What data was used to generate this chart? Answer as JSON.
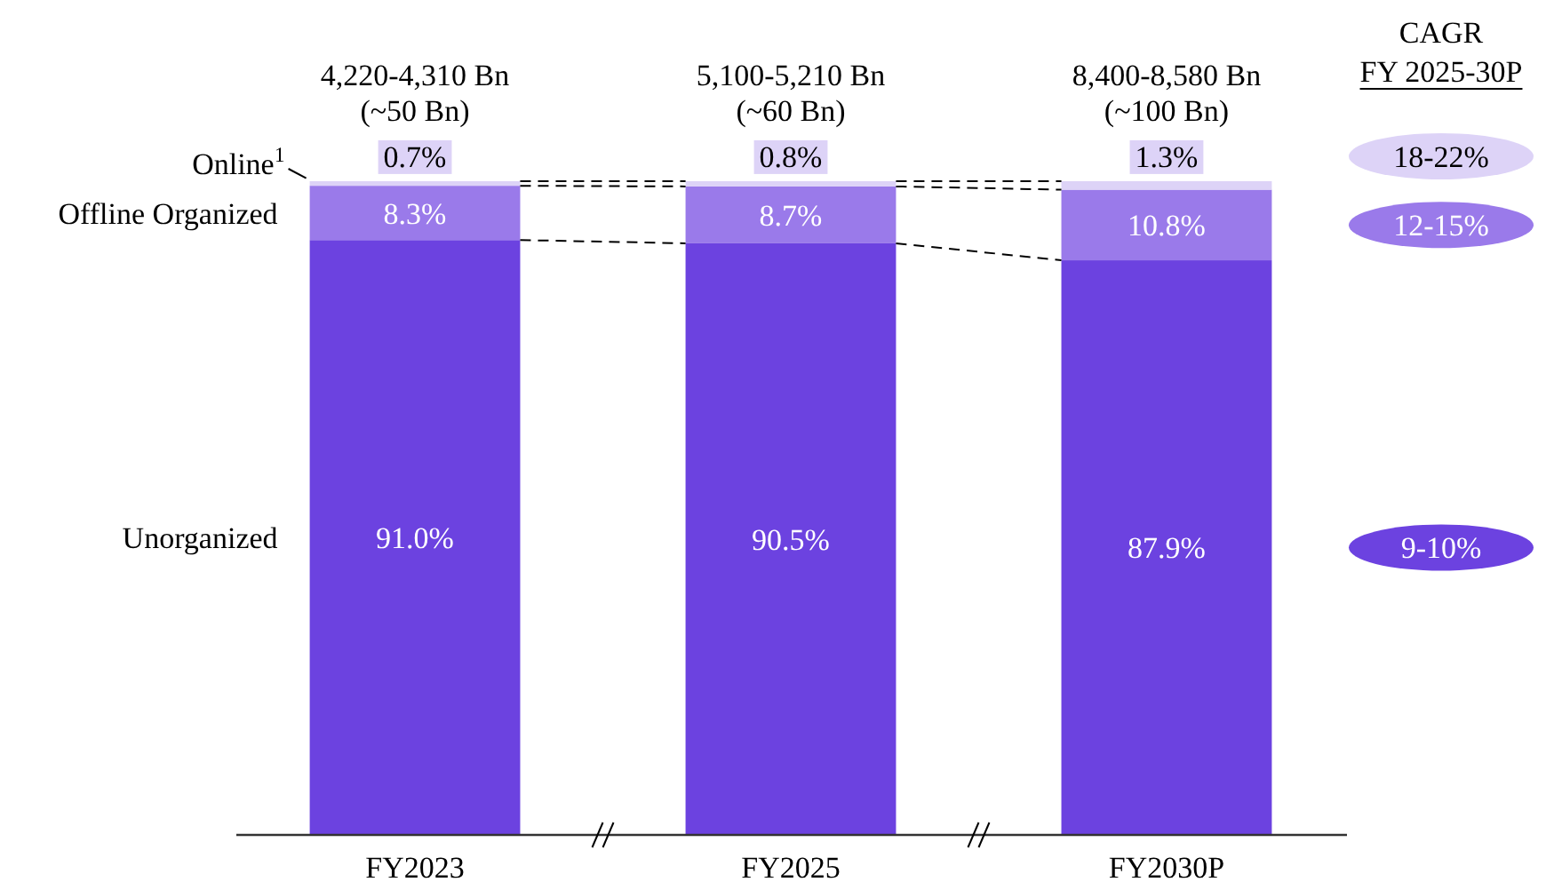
{
  "chart_data": {
    "type": "bar",
    "stacked": true,
    "categories": [
      "FY2023",
      "FY2025",
      "FY2030P"
    ],
    "ylim": [
      0,
      100
    ],
    "tick_labels": "x",
    "series": [
      {
        "name": "Unorganized",
        "color": "#6c42e0",
        "values": [
          91.0,
          90.5,
          87.9
        ],
        "value_labels": [
          "91.0%",
          "90.5%",
          "87.9%"
        ]
      },
      {
        "name": "Offline Organized",
        "color": "#9a7aea",
        "values": [
          8.3,
          8.7,
          10.8
        ],
        "value_labels": [
          "8.3%",
          "8.7%",
          "10.8%"
        ]
      },
      {
        "name": "Online$^{1}$",
        "color": "#ddd3f7",
        "values": [
          0.7,
          0.8,
          1.3
        ],
        "value_labels": [
          "0.7%",
          "0.8%",
          "1.3%"
        ]
      }
    ],
    "totals": [
      "4,220-4,310 Bn\n(~50 Bn)",
      "5,100-5,210 Bn\n(~60 Bn)",
      "8,400-8,580 Bn\n(~100 Bn)"
    ],
    "annotations": [
      "CAGR\nFY 2025-30P",
      "9-10%",
      "12-15%",
      "18-22%"
    ]
  }
}
